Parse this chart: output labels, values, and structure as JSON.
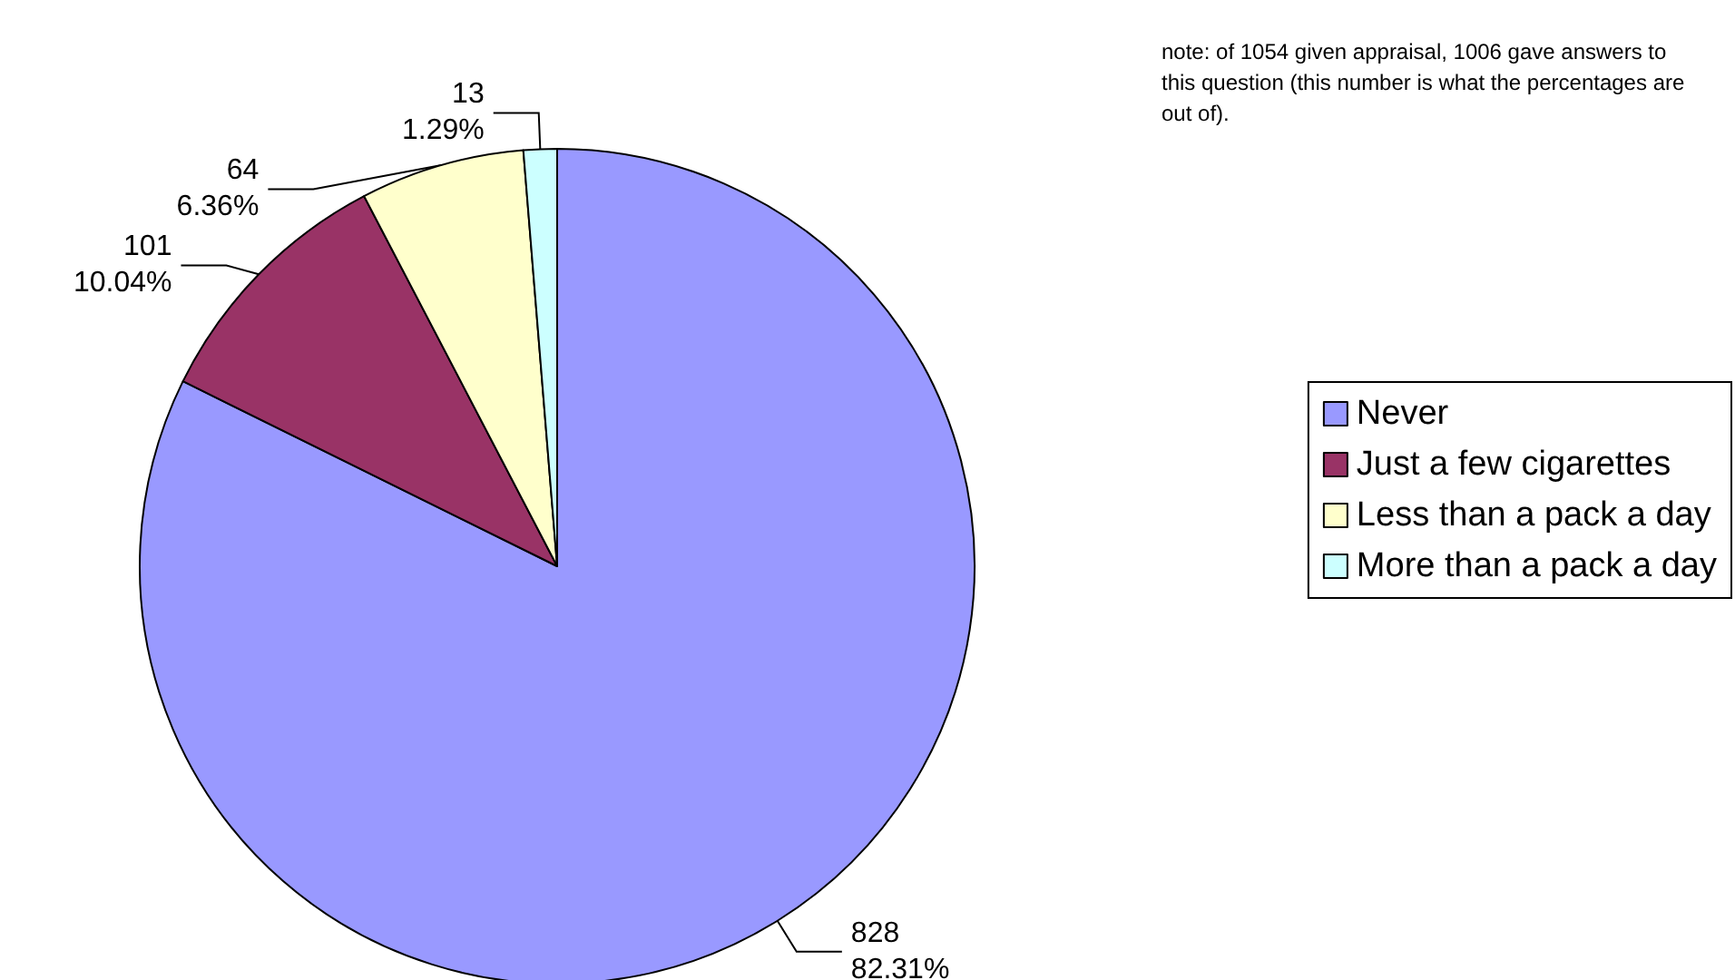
{
  "chart_data": {
    "type": "pie",
    "categories": [
      "Never",
      "Just a few cigarettes",
      "Less than a pack a day",
      "More than a pack a day"
    ],
    "values": [
      828,
      101,
      64,
      13
    ],
    "colors": [
      "#9999ff",
      "#993366",
      "#ffffcc",
      "#ccffff"
    ],
    "value_labels": [
      "828\n82.31%",
      "101\n10.04%",
      "64\n6.36%",
      "13\n1.29%"
    ],
    "annotations": [
      "note: of 1054 given appraisal, 1006 gave answers to this question (this number is what the percentages are out of)."
    ],
    "legend": "right"
  }
}
